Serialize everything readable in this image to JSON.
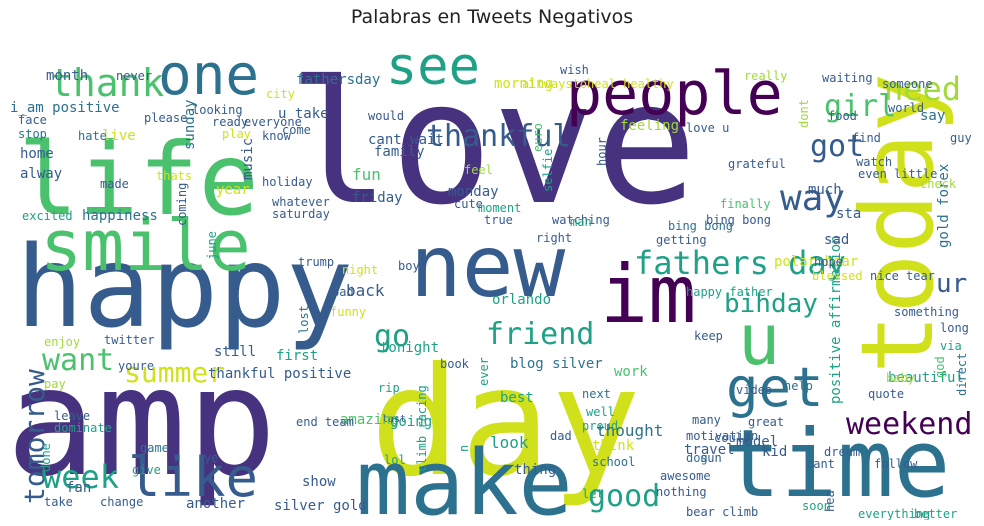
{
  "title": "Palabras en Tweets Negativos",
  "colors": {
    "dark_purple": "#46327e",
    "purple": "#440154",
    "blue": "#365c8d",
    "steel": "#2c728e",
    "teal": "#1fa187",
    "green": "#4ac16d",
    "light_green": "#a0da39",
    "yellow": "#d0e11c"
  },
  "words": [
    "love",
    "amp",
    "day",
    "happy",
    "life",
    "today",
    "new",
    "im",
    "time",
    "make",
    "smile",
    "people",
    "one",
    "see",
    "u",
    "get",
    "like",
    "fathers day",
    "thank",
    "thankful",
    "need",
    "girl",
    "got",
    "way",
    "friend",
    "want",
    "go",
    "bihday",
    "weekend",
    "tomorrow",
    "week",
    "good",
    "summer",
    "ur",
    "i_am positive",
    "fathersday",
    "u take",
    "cant wait",
    "feeling",
    "morning",
    "positive affirmation",
    "orlando",
    "blog silver",
    "silver gold",
    "climb racing",
    "polar bear",
    "happy father",
    "gold forex",
    "bing bong",
    "bear climb",
    "thankful positive",
    "beautiful",
    "amazing",
    "fun",
    "family",
    "friday",
    "music",
    "live",
    "home",
    "alway",
    "made",
    "year",
    "holiday",
    "sunday",
    "saturday",
    "happiness",
    "excited",
    "june",
    "trump",
    "back",
    "boy",
    "night",
    "bad",
    "funny",
    "lost",
    "first",
    "twitter",
    "youre",
    "still",
    "tonight",
    "book",
    "ever",
    "work",
    "best",
    "going",
    "rip",
    "next",
    "well",
    "proud",
    "think",
    "school",
    "dog",
    "sun",
    "kid",
    "help",
    "video",
    "quote",
    "baby",
    "god",
    "direct",
    "long",
    "via",
    "something",
    "keep",
    "tear",
    "blessed",
    "nice",
    "hope",
    "sad",
    "sta",
    "much",
    "finally",
    "bing bong",
    "watching",
    "true",
    "right",
    "getting",
    "moment",
    "cute",
    "monday",
    "man",
    "selfie",
    "euro",
    "feel",
    "hour",
    "love u",
    "grateful",
    "watch",
    "even",
    "little",
    "check",
    "find",
    "guy",
    "say",
    "world",
    "food",
    "someone",
    "waiting",
    "dont",
    "really",
    "wish",
    "altwaystoheal healthy",
    "would",
    "know",
    "come",
    "everyone",
    "city",
    "ready",
    "play",
    "looking",
    "please",
    "hate",
    "face",
    "stop",
    "month",
    "never",
    "thats",
    "coming",
    "whatever",
    "enjoy",
    "pay",
    "leave",
    "dominate",
    "done",
    "game",
    "ye",
    "end team",
    "give",
    "fan",
    "take",
    "change",
    "another",
    "show",
    "look",
    "thing",
    "dad",
    "let",
    "travel",
    "awesome",
    "nothing",
    "thought",
    "great",
    "model",
    "cant",
    "follow",
    "dream",
    "hea",
    "motivation",
    "many",
    "could",
    "soon",
    "everything",
    "better",
    "last",
    "n",
    "lol",
    "may"
  ]
}
